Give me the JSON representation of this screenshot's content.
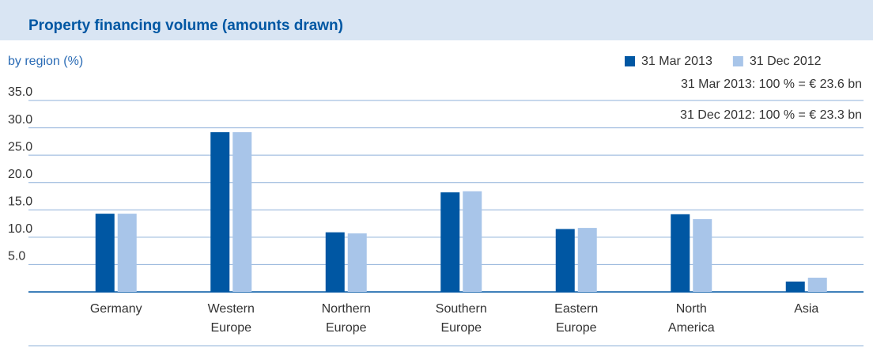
{
  "chart_data": {
    "type": "bar",
    "title": "Property financing volume (amounts drawn)",
    "subtitle": "by region (%)",
    "annotations": [
      "31 Mar 2013: 100 % = € 23.6 bn",
      "31 Dec 2012: 100 % = € 23.3 bn"
    ],
    "categories": [
      [
        "Germany"
      ],
      [
        "Western",
        "Europe"
      ],
      [
        "Northern",
        "Europe"
      ],
      [
        "Southern",
        "Europe"
      ],
      [
        "Eastern",
        "Europe"
      ],
      [
        "North",
        "America"
      ],
      [
        "Asia"
      ]
    ],
    "series": [
      {
        "name": "31 Mar 2013",
        "color": "#0057a3",
        "values": [
          14.3,
          29.2,
          10.9,
          18.2,
          11.5,
          14.2,
          1.9
        ]
      },
      {
        "name": "31 Dec 2012",
        "color": "#a8c5e9",
        "values": [
          14.3,
          29.2,
          10.7,
          18.4,
          11.7,
          13.3,
          2.6
        ]
      }
    ],
    "ylim": [
      0,
      35
    ],
    "yticks": [
      {
        "value": 5,
        "label": "5.0"
      },
      {
        "value": 10,
        "label": "10.0"
      },
      {
        "value": 15,
        "label": "15.0"
      },
      {
        "value": 20,
        "label": "20.0"
      },
      {
        "value": 25,
        "label": "25.0"
      },
      {
        "value": 30,
        "label": "30.0"
      },
      {
        "value": 35,
        "label": "35.0"
      }
    ],
    "grid": true,
    "legend": "top-right"
  }
}
